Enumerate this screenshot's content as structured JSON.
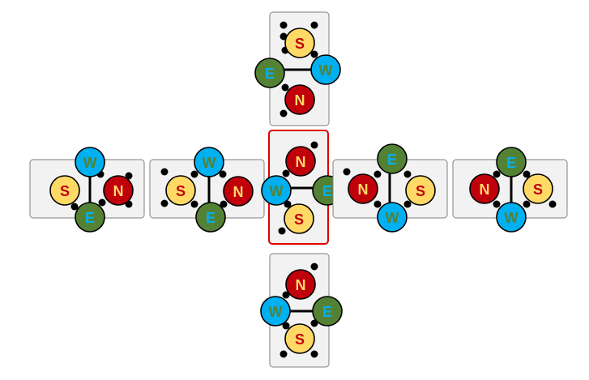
{
  "colors": {
    "N": "#c0000b",
    "S": "#ffd966",
    "E": "#548235",
    "W": "#00b0f0",
    "label_N": "#ffd966",
    "label_S": "#c0000b",
    "label_E": "#00b0f0",
    "label_W": "#548235",
    "tile_fill": "#f2f2f2",
    "tile_border": "#7f7f7f",
    "selected_border": "#e00000",
    "bond": "#000000",
    "dot": "#000000"
  },
  "tiles": [
    {
      "id": "top",
      "selected": false,
      "bond": "horizontal",
      "atoms": [
        {
          "label": "S",
          "letter": "S"
        },
        {
          "label": "E",
          "letter": "E"
        },
        {
          "label": "W",
          "letter": "W"
        },
        {
          "label": "N",
          "letter": "N"
        }
      ]
    },
    {
      "id": "left-outer",
      "selected": false,
      "bond": "vertical",
      "atoms": [
        {
          "label": "W",
          "letter": "W"
        },
        {
          "label": "S",
          "letter": "S"
        },
        {
          "label": "N",
          "letter": "N"
        },
        {
          "label": "E",
          "letter": "E"
        }
      ]
    },
    {
      "id": "left-inner",
      "selected": false,
      "bond": "vertical",
      "atoms": [
        {
          "label": "W",
          "letter": "W"
        },
        {
          "label": "S",
          "letter": "S"
        },
        {
          "label": "N",
          "letter": "N"
        },
        {
          "label": "E",
          "letter": "E"
        }
      ]
    },
    {
      "id": "center",
      "selected": true,
      "bond": "horizontal",
      "atoms": [
        {
          "label": "N",
          "letter": "N"
        },
        {
          "label": "W",
          "letter": "W"
        },
        {
          "label": "E",
          "letter": "E"
        },
        {
          "label": "S",
          "letter": "S"
        }
      ]
    },
    {
      "id": "right-inner",
      "selected": false,
      "bond": "vertical",
      "atoms": [
        {
          "label": "E",
          "letter": "E"
        },
        {
          "label": "N",
          "letter": "N"
        },
        {
          "label": "S",
          "letter": "S"
        },
        {
          "label": "W",
          "letter": "W"
        }
      ]
    },
    {
      "id": "right-outer",
      "selected": false,
      "bond": "vertical",
      "atoms": [
        {
          "label": "E",
          "letter": "E"
        },
        {
          "label": "N",
          "letter": "N"
        },
        {
          "label": "S",
          "letter": "S"
        },
        {
          "label": "W",
          "letter": "W"
        }
      ]
    },
    {
      "id": "bottom",
      "selected": false,
      "bond": "horizontal",
      "atoms": [
        {
          "label": "N",
          "letter": "N"
        },
        {
          "label": "W",
          "letter": "W"
        },
        {
          "label": "E",
          "letter": "E"
        },
        {
          "label": "S",
          "letter": "S"
        }
      ]
    }
  ]
}
